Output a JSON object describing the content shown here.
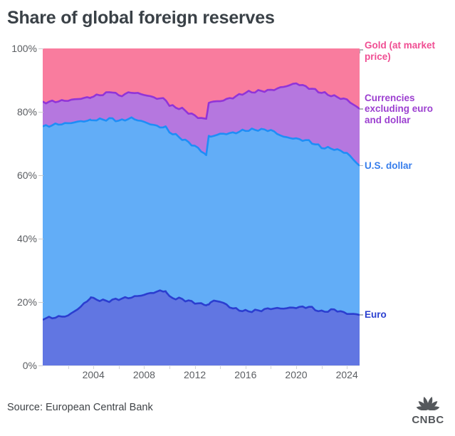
{
  "header": {
    "title": "Share of global foreign reserves"
  },
  "source": {
    "text": "Source: European Central Bank"
  },
  "branding": {
    "logo_text": "CNBC",
    "logo_icon": "peacock-icon",
    "logo_color": "#55585C"
  },
  "colors": {
    "background": "#FFFFFF",
    "title_text": "#3A4147",
    "axis_text": "#5B5E62",
    "tick": "#C9CBCD",
    "legend_connector": "#AEB2B6"
  },
  "chart_data": {
    "type": "area",
    "stacked": true,
    "title": "Share of global foreign reserves",
    "xlabel": "",
    "ylabel": "",
    "xlim": [
      2000,
      2025
    ],
    "ylim": [
      0,
      100
    ],
    "grid": false,
    "legend_position": "right",
    "x": [
      2000,
      2001,
      2002,
      2003,
      2003.8,
      2004,
      2005,
      2005.5,
      2006,
      2007,
      2008,
      2009,
      2009.7,
      2010,
      2011,
      2012,
      2012.9,
      2013.1,
      2013.5,
      2014,
      2015,
      2016,
      2017,
      2018,
      2019,
      2020,
      2021,
      2022,
      2023,
      2024,
      2025
    ],
    "series": [
      {
        "name": "Euro",
        "label_lines": [
          "Euro"
        ],
        "area_color": "#6176E2",
        "line_color": "#2B3ED0",
        "label_color": "#2B40D0",
        "values": [
          14.8,
          15.2,
          15.7,
          18.5,
          21.5,
          21.0,
          20.3,
          20.6,
          21.0,
          21.5,
          22.3,
          23.3,
          23.6,
          21.5,
          20.9,
          19.8,
          19.1,
          19.5,
          20.4,
          20.2,
          18.0,
          17.1,
          17.3,
          18.0,
          18.0,
          18.3,
          18.5,
          16.9,
          17.6,
          16.4,
          16.0
        ]
      },
      {
        "name": "U.S. dollar",
        "label_lines": [
          "U.S. dollar"
        ],
        "area_color": "#62ADF7",
        "line_color": "#1E8EF7",
        "label_color": "#377EEC",
        "values": [
          60.5,
          60.8,
          60.7,
          58.5,
          55.8,
          56.5,
          57.3,
          57.2,
          56.1,
          56.5,
          54.5,
          52.2,
          51.4,
          52.2,
          50.6,
          49.4,
          47.4,
          52.5,
          52.1,
          52.8,
          55.3,
          57.1,
          57.1,
          56.2,
          54.1,
          53.2,
          52.3,
          51.9,
          50.7,
          50.6,
          47.0
        ]
      },
      {
        "name": "Currencies excluding euro and dollar",
        "label_lines": [
          "Currencies",
          "excluding euro",
          "and dollar"
        ],
        "area_color": "#B577DF",
        "line_color": "#9134D8",
        "label_color": "#9C3FD0",
        "values": [
          7.7,
          7.3,
          7.2,
          7.2,
          7.3,
          7.4,
          8.2,
          8.7,
          7.9,
          8.2,
          8.6,
          8.8,
          9.0,
          8.3,
          9.4,
          9.5,
          11.0,
          11.1,
          10.7,
          10.4,
          11.2,
          11.9,
          12.1,
          12.6,
          15.8,
          17.5,
          16.8,
          17.3,
          16.6,
          16.8,
          17.9
        ]
      },
      {
        "name": "Gold (at market price)",
        "label_lines": [
          "Gold (at market",
          "price)"
        ],
        "area_color": "#F97C9E",
        "line_color": "#F97C9E",
        "label_color": "#F04E93",
        "values": [
          17.0,
          16.7,
          16.4,
          15.8,
          15.4,
          15.1,
          14.2,
          13.5,
          15.0,
          13.8,
          14.6,
          15.7,
          16.0,
          18.0,
          19.1,
          21.3,
          22.5,
          16.9,
          16.8,
          16.6,
          15.5,
          13.9,
          13.5,
          13.2,
          12.1,
          11.0,
          12.4,
          13.9,
          15.1,
          16.2,
          19.1
        ]
      }
    ],
    "y_ticks": [
      0,
      20,
      40,
      60,
      80,
      100
    ],
    "y_ticklabels": [
      "0%",
      "20%",
      "40%",
      "60%",
      "80%",
      "100%"
    ],
    "x_tick_years": [
      2004,
      2008,
      2012,
      2016,
      2020,
      2024
    ],
    "x_ticklabels": [
      "2004",
      "2008",
      "2012",
      "2016",
      "2020",
      "2024"
    ],
    "x_minor_tick_years": [
      2002,
      2006,
      2010,
      2014,
      2018,
      2022
    ]
  }
}
